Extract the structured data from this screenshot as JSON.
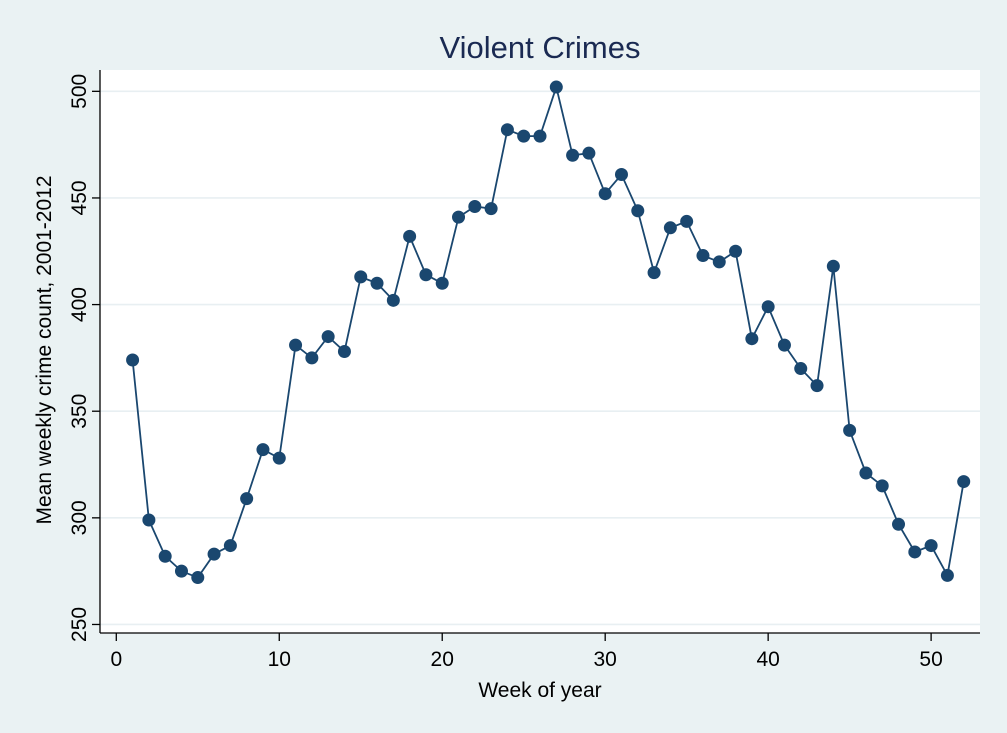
{
  "chart_data": {
    "type": "line",
    "title": "Violent Crimes",
    "xlabel": "Week of year",
    "ylabel": "Mean weekly crime count, 2001-2012",
    "xlim": [
      -1,
      53
    ],
    "ylim": [
      246,
      510
    ],
    "xticks": [
      0,
      10,
      20,
      30,
      40,
      50
    ],
    "yticks": [
      250,
      300,
      350,
      400,
      450,
      500
    ],
    "grid": true,
    "legend": "none",
    "colors": {
      "series": "#1a476f",
      "background": "#eaf2f3",
      "plot_area": "#ffffff",
      "title": "#1a2a52"
    },
    "x": [
      1,
      2,
      3,
      4,
      5,
      6,
      7,
      8,
      9,
      10,
      11,
      12,
      13,
      14,
      15,
      16,
      17,
      18,
      19,
      20,
      21,
      22,
      23,
      24,
      25,
      26,
      27,
      28,
      29,
      30,
      31,
      32,
      33,
      34,
      35,
      36,
      37,
      38,
      39,
      40,
      41,
      42,
      43,
      44,
      45,
      46,
      47,
      48,
      49,
      50,
      51,
      52
    ],
    "y": [
      374,
      299,
      282,
      275,
      272,
      283,
      287,
      309,
      332,
      328,
      381,
      375,
      385,
      378,
      413,
      410,
      402,
      432,
      414,
      410,
      441,
      446,
      445,
      482,
      479,
      479,
      502,
      470,
      471,
      452,
      461,
      444,
      415,
      436,
      439,
      423,
      420,
      425,
      384,
      399,
      381,
      370,
      362,
      418,
      341,
      321,
      315,
      297,
      284,
      287,
      273,
      317
    ]
  }
}
